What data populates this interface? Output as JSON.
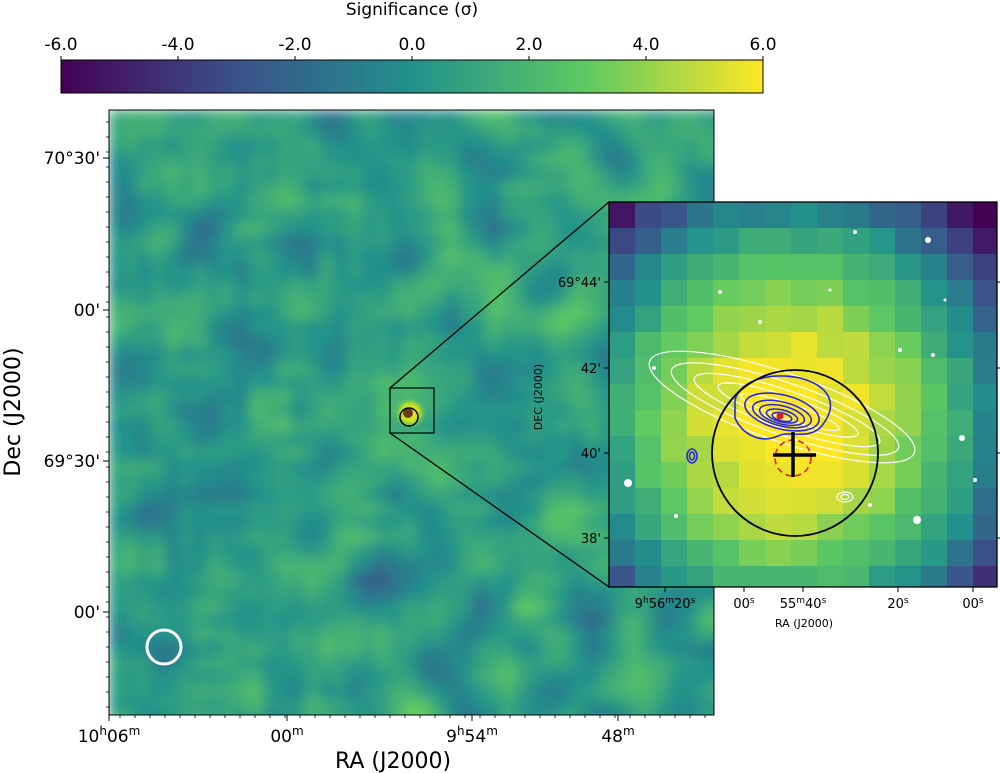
{
  "chart_data": {
    "type": "heatmap",
    "colorbar": {
      "title": "Significance (σ)",
      "min": -6.0,
      "max": 6.0,
      "ticks": [
        "-6.0",
        "-4.0",
        "-2.0",
        "0.0",
        "2.0",
        "4.0",
        "6.0"
      ],
      "colormap": "viridis",
      "colors": [
        "#440154",
        "#3b528b",
        "#21918c",
        "#5ec962",
        "#fde725"
      ]
    },
    "main_map": {
      "xlabel": "RA (J2000)",
      "ylabel": "Dec (J2000)",
      "x_ticks": [
        {
          "h": "10",
          "hs": "h",
          "m": "06",
          "ms": "m"
        },
        {
          "h": "",
          "hs": "",
          "m": "00",
          "ms": "m"
        },
        {
          "h": "9",
          "hs": "h",
          "m": "54",
          "ms": "m"
        },
        {
          "h": "",
          "hs": "",
          "m": "48",
          "ms": "m"
        }
      ],
      "y_ticks": [
        "70°30'",
        "00'",
        "69°30'",
        "00'"
      ],
      "source_significance_sigma": 6.0,
      "background_significance_range": [
        -4.0,
        4.0
      ]
    },
    "inset": {
      "xlabel": "RA (J2000)",
      "ylabel": "DEC (J2000)",
      "x_ticks": [
        {
          "h": "9",
          "hs": "h",
          "m": "56",
          "ms": "m",
          "s": "20",
          "ss": "s"
        },
        {
          "h": "",
          "hs": "",
          "m": "",
          "ms": "",
          "s": "00",
          "ss": "s"
        },
        {
          "h": "",
          "hs": "",
          "m": "55",
          "ms": "m",
          "s": "40",
          "ss": "s"
        },
        {
          "h": "",
          "hs": "",
          "m": "",
          "ms": "",
          "s": "20",
          "ss": "s"
        },
        {
          "h": "",
          "hs": "",
          "m": "",
          "ms": "",
          "s": "00",
          "ss": "s"
        }
      ],
      "y_ticks": [
        "69°44'",
        "42'",
        "40'",
        "38'"
      ]
    }
  }
}
